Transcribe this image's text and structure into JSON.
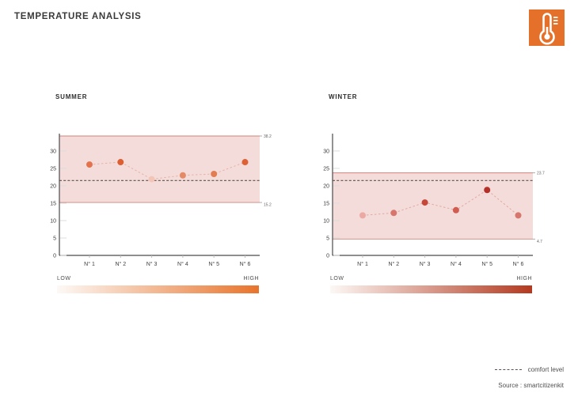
{
  "page": {
    "title": "TEMPERATURE ANALYSIS"
  },
  "header_icon": {
    "name": "thermometer",
    "bg_color": "#e4702a",
    "glyph_color": "#ffffff"
  },
  "legend": {
    "comfort_label": "comfort level",
    "source": "Source : smartcitizenkit"
  },
  "chart_data": [
    {
      "type": "scatter",
      "title": "SUMMER",
      "categories": [
        "N° 1",
        "N° 2",
        "N° 3",
        "N° 4",
        "N° 5",
        "N° 6"
      ],
      "values": [
        26.1,
        26.8,
        21.9,
        23.0,
        23.4,
        26.8
      ],
      "point_colors": [
        "#e2734d",
        "#dd5f31",
        "#f3c5b6",
        "#e48a66",
        "#e27c52",
        "#dd6134"
      ],
      "connector_color": "#e5b3a8",
      "band": {
        "low": 15.2,
        "high": 38.2,
        "low_label": "15.2",
        "high_label": "38.2"
      },
      "band_fill": "#f4dcda",
      "band_edge": "#cf837c",
      "comfort_level": 21.5,
      "yticks": [
        0,
        5,
        10,
        15,
        20,
        25,
        30
      ],
      "ylim": [
        0,
        34.3
      ],
      "xlabel": "",
      "ylabel": "",
      "grid": false,
      "gradient": {
        "low_label": "LOW",
        "high_label": "HIGH",
        "from": "#fdf9f6",
        "to": "#e8742c"
      }
    },
    {
      "type": "scatter",
      "title": "WINTER",
      "categories": [
        "N° 1",
        "N° 2",
        "N° 3",
        "N° 4",
        "N° 5",
        "N° 6"
      ],
      "values": [
        11.5,
        12.2,
        15.2,
        13.0,
        18.8,
        11.5
      ],
      "point_colors": [
        "#eba9a4",
        "#d7766d",
        "#c5473a",
        "#d05c52",
        "#b4302a",
        "#d7766d"
      ],
      "connector_color": "#e0aba4",
      "band": {
        "low": 4.7,
        "high": 23.7,
        "low_label": "4.7",
        "high_label": "23.7"
      },
      "band_fill": "#f4dcda",
      "band_edge": "#cf837c",
      "comfort_level": 21.5,
      "yticks": [
        0,
        5,
        10,
        15,
        20,
        25,
        30
      ],
      "ylim": [
        0,
        34.3
      ],
      "xlabel": "",
      "ylabel": "",
      "grid": false,
      "gradient": {
        "low_label": "LOW",
        "high_label": "HIGH",
        "from": "#fdf8f5",
        "to": "#b33a20"
      }
    }
  ]
}
